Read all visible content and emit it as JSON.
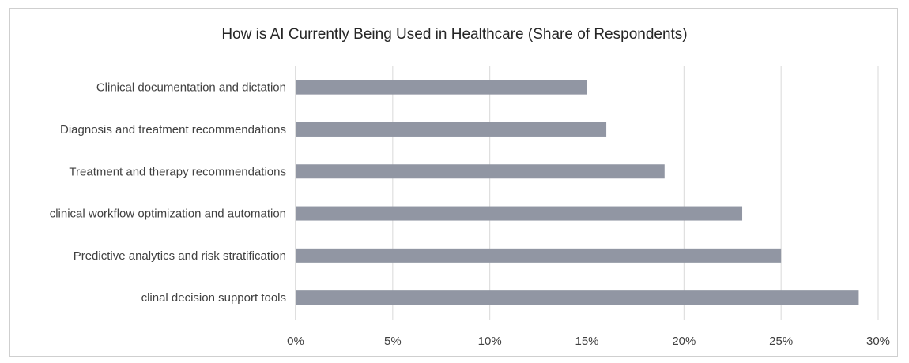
{
  "chart_data": {
    "type": "bar",
    "orientation": "horizontal",
    "title": "How is AI Currently Being Used in Healthcare (Share of Respondents)",
    "categories": [
      "Clinical documentation and dictation",
      "Diagnosis and treatment recommendations",
      "Treatment and therapy recommendations",
      "clinical workflow optimization and automation",
      "Predictive analytics and risk stratification",
      "clinal decision support tools"
    ],
    "values": [
      15,
      16,
      19,
      23,
      25,
      29
    ],
    "xlim": [
      0,
      30
    ],
    "xticks": [
      "0%",
      "5%",
      "10%",
      "15%",
      "20%",
      "25%",
      "30%"
    ],
    "grid": true,
    "legend": "none",
    "bar_color": "#9196a3"
  }
}
